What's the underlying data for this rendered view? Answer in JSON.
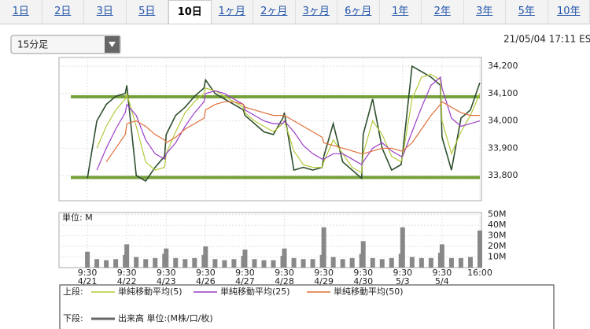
{
  "tabs": [
    "1日",
    "2日",
    "3日",
    "5日",
    "10日",
    "1ヶ月",
    "2ヶ月",
    "3ヶ月",
    "6ヶ月",
    "1年",
    "2年",
    "3年",
    "5年",
    "10年"
  ],
  "selected_tab_index": 4,
  "dropdown": "15分足",
  "timestamp": "21/05/04 17:11 ES",
  "legend": {
    "upper_label": "上段:",
    "lower_label": "下段:"
  },
  "chart_data": [
    {
      "type": "line",
      "x": [
        0,
        0.24,
        0.48,
        0.72,
        0.96,
        1,
        1.24,
        1.48,
        1.72,
        1.96,
        2,
        2.24,
        2.48,
        2.72,
        2.96,
        3,
        3.24,
        3.48,
        3.72,
        3.96,
        4,
        4.24,
        4.48,
        4.72,
        4.96,
        5,
        5.24,
        5.48,
        5.72,
        5.96,
        6,
        6.24,
        6.48,
        6.72,
        6.96,
        7,
        7.24,
        7.48,
        7.72,
        7.96,
        8,
        8.24,
        8.48,
        8.72,
        8.96,
        9,
        9.24,
        9.48,
        9.72,
        9.96
      ],
      "series": [
        {
          "color": "#2f4f2f",
          "values": [
            33790,
            34000,
            34060,
            34090,
            34100,
            34130,
            33800,
            33780,
            33830,
            33870,
            33950,
            34020,
            34050,
            34090,
            34120,
            34150,
            34100,
            34080,
            34060,
            34040,
            34020,
            33990,
            33960,
            33950,
            34010,
            34030,
            33820,
            33830,
            33820,
            33830,
            33870,
            33990,
            33850,
            33820,
            33790,
            33950,
            34080,
            33900,
            33820,
            33840,
            33880,
            34200,
            34180,
            34160,
            34130,
            33940,
            33820,
            34010,
            34040,
            34140
          ]
        },
        {
          "name": "単純移動平均(5)",
          "color": "#b5c93a",
          "values": [
            null,
            33900,
            33980,
            34040,
            34080,
            34100,
            33980,
            33850,
            33820,
            33830,
            33880,
            33960,
            34030,
            34070,
            34100,
            34120,
            34110,
            34090,
            34070,
            34050,
            34030,
            34000,
            33980,
            33960,
            33990,
            34000,
            33890,
            33840,
            33830,
            33830,
            33850,
            33930,
            33880,
            33830,
            33810,
            33880,
            34000,
            33950,
            33870,
            33850,
            33870,
            34080,
            34160,
            34170,
            34150,
            34000,
            33880,
            33960,
            34020,
            34100
          ]
        },
        {
          "name": "単純移動平均(25)",
          "color": "#9b3fc7",
          "values": [
            null,
            33820,
            33900,
            33970,
            34030,
            34060,
            34020,
            33930,
            33880,
            33860,
            33880,
            33920,
            33980,
            34030,
            34070,
            34100,
            34110,
            34100,
            34080,
            34060,
            34040,
            34020,
            34000,
            33990,
            33990,
            34000,
            33960,
            33910,
            33880,
            33860,
            33860,
            33880,
            33880,
            33860,
            33840,
            33850,
            33900,
            33920,
            33890,
            33870,
            33870,
            33960,
            34050,
            34130,
            34160,
            34120,
            34010,
            33980,
            33990,
            34000
          ]
        },
        {
          "name": "単純移動平均(50)",
          "color": "#e0703a",
          "values": [
            null,
            null,
            33850,
            33900,
            33950,
            33990,
            34000,
            33980,
            33950,
            33930,
            33920,
            33940,
            33970,
            33990,
            34010,
            34040,
            34060,
            34070,
            34070,
            34060,
            34050,
            34040,
            34030,
            34020,
            34020,
            34020,
            34000,
            33980,
            33960,
            33940,
            33920,
            33910,
            33900,
            33890,
            33880,
            33880,
            33890,
            33900,
            33900,
            33890,
            33890,
            33920,
            33970,
            34020,
            34060,
            34070,
            34050,
            34030,
            34020,
            34020
          ]
        }
      ],
      "reference_lines": [
        {
          "value": 34088,
          "color": "#76a03a"
        },
        {
          "value": 33793,
          "color": "#76a03a"
        }
      ],
      "xlim": [
        -0.72,
        10
      ],
      "xticks": [
        {
          "value": 0,
          "label": "9:30",
          "date": "4/21"
        },
        {
          "value": 1,
          "label": "9:30",
          "date": "4/22"
        },
        {
          "value": 2,
          "label": "9:30",
          "date": "4/23"
        },
        {
          "value": 3,
          "label": "9:30",
          "date": "4/26"
        },
        {
          "value": 4,
          "label": "9:30",
          "date": "4/27"
        },
        {
          "value": 5,
          "label": "9:30",
          "date": "4/28"
        },
        {
          "value": 6,
          "label": "9:30",
          "date": "4/29"
        },
        {
          "value": 7,
          "label": "9:30",
          "date": "4/30"
        },
        {
          "value": 8,
          "label": "9:30",
          "date": "5/3"
        },
        {
          "value": 9,
          "label": "9:30",
          "date": "5/4"
        },
        {
          "value": 9.96,
          "label": "16:00"
        }
      ],
      "ylim": [
        33708,
        34232
      ],
      "yticks": [
        {
          "value": 33800,
          "label": "33,800"
        },
        {
          "value": 33900,
          "label": "33,900"
        },
        {
          "value": 34000,
          "label": "34,000"
        },
        {
          "value": 34100,
          "label": "34,100"
        },
        {
          "value": 34200,
          "label": "34,200"
        }
      ],
      "grid": true
    },
    {
      "type": "bar",
      "unit_label": "単位: M",
      "series": [
        {
          "name": "出来高 単位:(M株/口/枚)",
          "color": "#888888",
          "values": [
            15,
            8,
            7,
            8,
            12,
            22,
            10,
            8,
            9,
            13,
            18,
            9,
            8,
            9,
            12,
            20,
            8,
            7,
            8,
            11,
            17,
            8,
            7,
            7,
            11,
            18,
            9,
            8,
            8,
            12,
            38,
            10,
            8,
            9,
            13,
            25,
            9,
            8,
            9,
            13,
            38,
            10,
            9,
            9,
            14,
            22,
            9,
            9,
            10,
            35
          ]
        }
      ],
      "ylim": [
        0,
        52
      ],
      "yticks": [
        {
          "value": 10,
          "label": "10M"
        },
        {
          "value": 20,
          "label": "20M"
        },
        {
          "value": 30,
          "label": "30M"
        },
        {
          "value": 40,
          "label": "40M"
        },
        {
          "value": 50,
          "label": "50M"
        }
      ],
      "grid": true
    }
  ]
}
